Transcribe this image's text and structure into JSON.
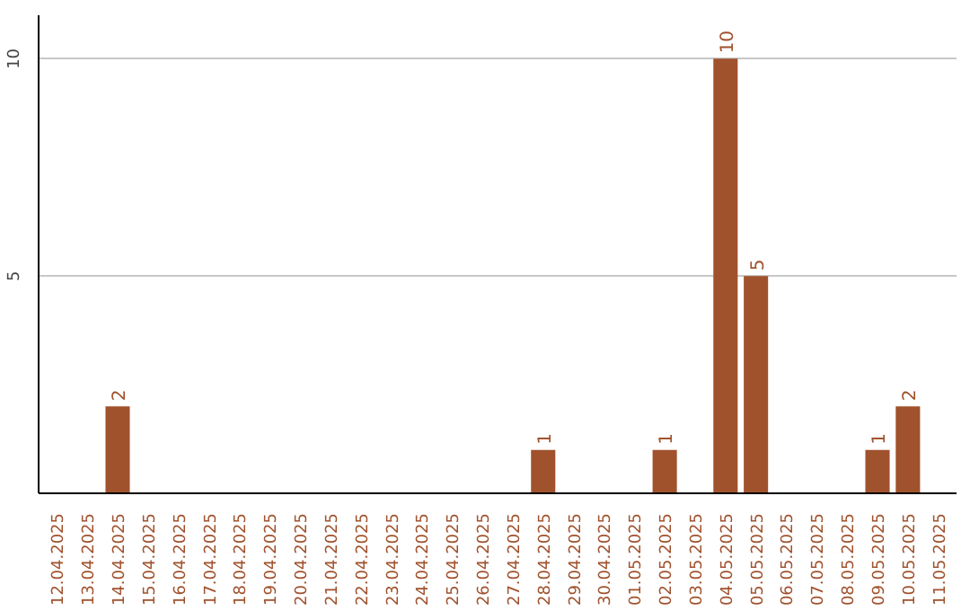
{
  "chart_data": {
    "type": "bar",
    "categories": [
      "12.04.2025",
      "13.04.2025",
      "14.04.2025",
      "15.04.2025",
      "16.04.2025",
      "17.04.2025",
      "18.04.2025",
      "19.04.2025",
      "20.04.2025",
      "21.04.2025",
      "22.04.2025",
      "23.04.2025",
      "24.04.2025",
      "25.04.2025",
      "26.04.2025",
      "27.04.2025",
      "28.04.2025",
      "29.04.2025",
      "30.04.2025",
      "01.05.2025",
      "02.05.2025",
      "03.05.2025",
      "04.05.2025",
      "05.05.2025",
      "06.05.2025",
      "07.05.2025",
      "08.05.2025",
      "09.05.2025",
      "10.05.2025",
      "11.05.2025"
    ],
    "values": [
      0,
      0,
      2,
      0,
      0,
      0,
      0,
      0,
      0,
      0,
      0,
      0,
      0,
      0,
      0,
      0,
      1,
      0,
      0,
      0,
      1,
      0,
      10,
      5,
      0,
      0,
      0,
      1,
      2,
      0
    ],
    "value_labels": [
      null,
      null,
      "2",
      null,
      null,
      null,
      null,
      null,
      null,
      null,
      null,
      null,
      null,
      null,
      null,
      null,
      "1",
      null,
      null,
      null,
      "1",
      null,
      "10",
      "5",
      null,
      null,
      null,
      "1",
      "2",
      null
    ],
    "color": "#a0522d",
    "ylim": [
      0,
      11
    ],
    "yticks": [
      5,
      10
    ],
    "grid": "y"
  }
}
